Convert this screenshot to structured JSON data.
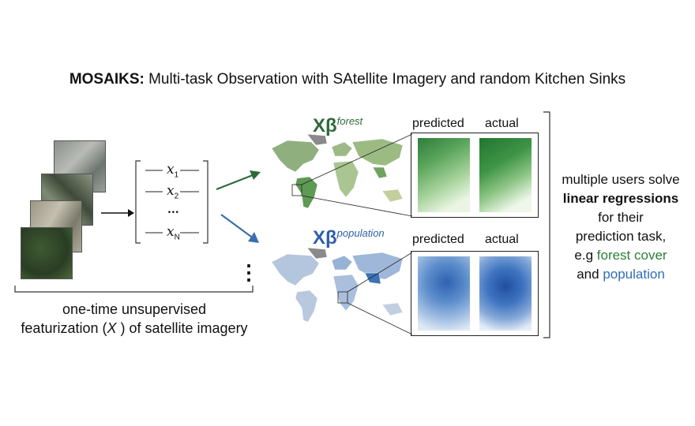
{
  "title": {
    "bold": "MOSAIKS:",
    "rest": " Multi-task Observation with SAtellite Imagery and random Kitchen Sinks"
  },
  "features": [
    {
      "symbol": "x",
      "sub": "1"
    },
    {
      "symbol": "x",
      "sub": "2"
    },
    {
      "symbol": "...",
      "sub": ""
    },
    {
      "symbol": "x",
      "sub": "N"
    }
  ],
  "caption": {
    "line1": "one-time unsupervised",
    "line2_a": "featurization (",
    "line2_x": "X",
    "line2_b": " ) of satellite imagery"
  },
  "forest": {
    "beta": "Xβ",
    "sup": "forest",
    "predicted": "predicted",
    "actual": "actual",
    "color": "#2e7d3a"
  },
  "population": {
    "beta": "Xβ",
    "sup": "population",
    "predicted": "predicted",
    "actual": "actual",
    "color": "#2f6db5"
  },
  "ellipsis": "⋮",
  "side_text": {
    "l1": "multiple users solve",
    "l2": "linear regressions",
    "l3": "for their",
    "l4": "prediction task,",
    "l5_a": "e.g ",
    "l5_b": "forest cover",
    "l6_a": "and ",
    "l6_b": "population"
  }
}
